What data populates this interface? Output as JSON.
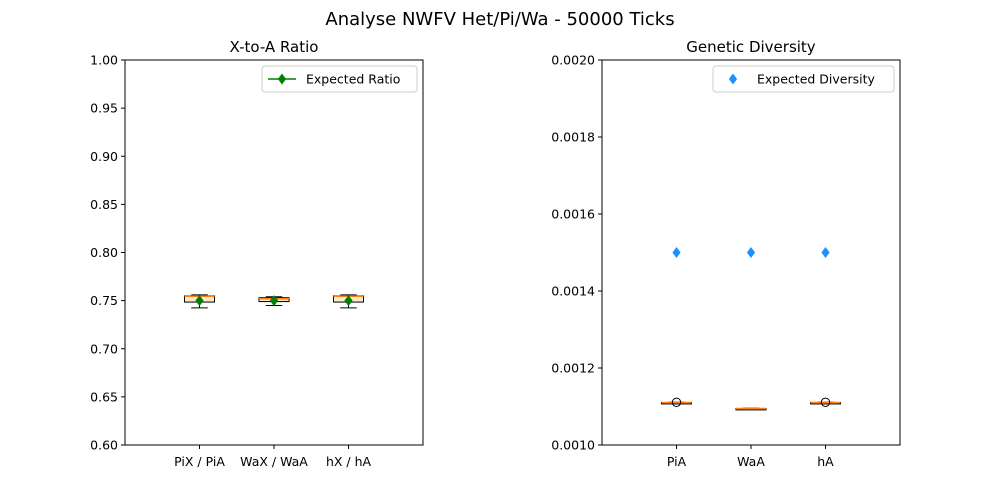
{
  "figure": {
    "title": "Analyse NWFV Het/Pi/Wa - 50000 Ticks"
  },
  "chart_data": [
    {
      "type": "box",
      "title": "X-to-A Ratio",
      "xlabel": "",
      "ylabel": "",
      "categories": [
        "PiX / PiA",
        "WaX / WaA",
        "hX / hA"
      ],
      "ylim": [
        0.6,
        1.0
      ],
      "yticks": [
        "0.60",
        "0.65",
        "0.70",
        "0.75",
        "0.80",
        "0.85",
        "0.90",
        "0.95",
        "1.00"
      ],
      "boxes": [
        {
          "whislo": 0.7425,
          "q1": 0.7485,
          "med": 0.7545,
          "q3": 0.755,
          "whishi": 0.756,
          "fliers": []
        },
        {
          "whislo": 0.745,
          "q1": 0.749,
          "med": 0.752,
          "q3": 0.753,
          "whishi": 0.754,
          "fliers": []
        },
        {
          "whislo": 0.7425,
          "q1": 0.7485,
          "med": 0.7545,
          "q3": 0.755,
          "whishi": 0.756,
          "fliers": []
        }
      ],
      "expected": {
        "name": "Expected Ratio",
        "values": [
          0.75,
          0.75,
          0.75
        ],
        "color": "#008000"
      },
      "legend_loc": "top-right",
      "box_fill": "#fde8c8",
      "median_color": "#ff7f0e"
    },
    {
      "type": "box",
      "title": "Genetic Diversity",
      "xlabel": "",
      "ylabel": "",
      "categories": [
        "PiA",
        "WaA",
        "hA"
      ],
      "ylim": [
        0.001,
        0.002
      ],
      "yticks": [
        "0.0010",
        "0.0012",
        "0.0014",
        "0.0016",
        "0.0018",
        "0.0020"
      ],
      "boxes": [
        {
          "whislo": 0.001109,
          "q1": 0.0011095,
          "med": 0.00111,
          "q3": 0.0011105,
          "whishi": 0.001111,
          "fliers": [
            0.001111
          ]
        },
        {
          "whislo": 0.0010935,
          "q1": 0.001094,
          "med": 0.0010945,
          "q3": 0.001095,
          "whishi": 0.0010955,
          "fliers": []
        },
        {
          "whislo": 0.001109,
          "q1": 0.0011095,
          "med": 0.00111,
          "q3": 0.0011105,
          "whishi": 0.001111,
          "fliers": [
            0.001111
          ]
        }
      ],
      "expected": {
        "name": "Expected Diversity",
        "values": [
          0.0015,
          0.0015,
          0.0015
        ],
        "color": "#1e90ff"
      },
      "legend_loc": "top-right",
      "box_fill": "#fde8c8",
      "median_color": "#ff7f0e"
    }
  ]
}
